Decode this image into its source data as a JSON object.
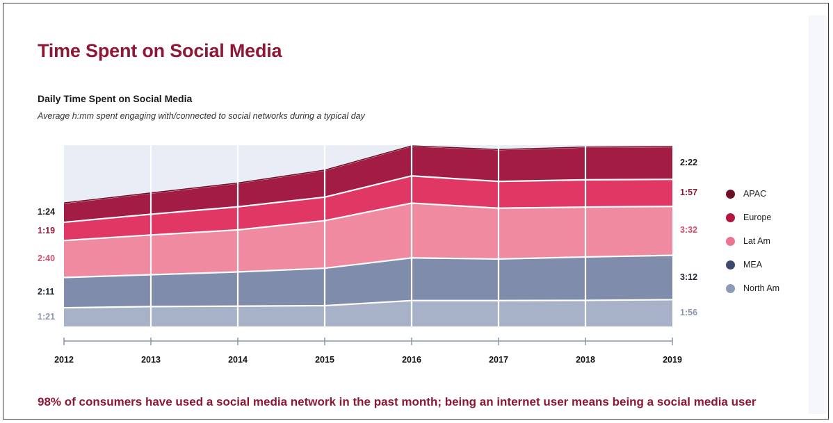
{
  "title": "Time Spent on Social Media",
  "subtitle": "Daily Time Spent on Social Media",
  "caption": "Average h:mm spent engaging with/connected to social networks during a typical day",
  "footnote": "98% of consumers have used a social media network in the past month; being an internet user means being a social media user",
  "chart_data": {
    "type": "area",
    "stacked": true,
    "unit": "h:mm",
    "categories": [
      "2012",
      "2013",
      "2014",
      "2015",
      "2016",
      "2017",
      "2018",
      "2019"
    ],
    "series": [
      {
        "name": "North Am",
        "color": "#a7b2c8",
        "label_color": "#8a96ad",
        "values": [
          81,
          86,
          88,
          90,
          112,
          112,
          113,
          116
        ],
        "start_label": "1:21",
        "end_label": "1:56"
      },
      {
        "name": "MEA",
        "color": "#7f8cab",
        "label_color": "#1e2638",
        "values": [
          131,
          138,
          148,
          162,
          185,
          180,
          188,
          192
        ],
        "start_label": "2:11",
        "end_label": "3:12"
      },
      {
        "name": "Lat Am",
        "color": "#f08aa0",
        "label_color": "#cf4f6c",
        "values": [
          160,
          172,
          182,
          206,
          237,
          220,
          216,
          212
        ],
        "start_label": "2:40",
        "end_label": "3:32"
      },
      {
        "name": "Europe",
        "color": "#e03765",
        "label_color": "#8f1736",
        "values": [
          79,
          90,
          100,
          102,
          118,
          116,
          118,
          117
        ],
        "start_label": "1:19",
        "end_label": "1:57"
      },
      {
        "name": "APAC",
        "color": "#a21c44",
        "label_color": "#1a1a1a",
        "values": [
          84,
          92,
          103,
          117,
          130,
          138,
          142,
          142
        ],
        "start_label": "1:24",
        "end_label": "2:22"
      }
    ],
    "legend_order": [
      "APAC",
      "Europe",
      "Lat Am",
      "MEA",
      "North Am"
    ],
    "legend_colors": [
      "#6e0f28",
      "#b5163f",
      "#ec7490",
      "#3d4a6b",
      "#8e9bb6"
    ],
    "legend_position": "right",
    "ylim": [
      0,
      785
    ],
    "grid": false
  }
}
